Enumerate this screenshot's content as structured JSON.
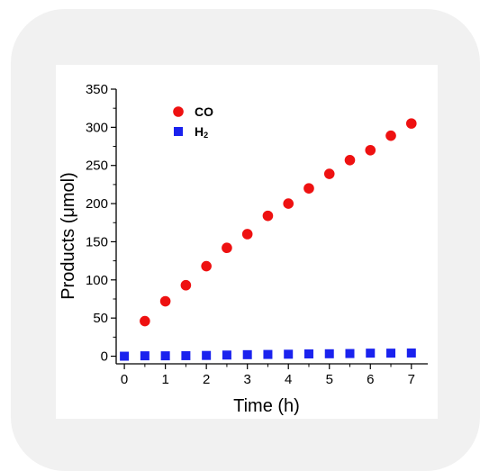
{
  "chart_data": {
    "type": "scatter",
    "xlabel": "Time (h)",
    "ylabel": "Products (μmol)",
    "xlim": [
      -0.2,
      7.4
    ],
    "ylim": [
      -10,
      350
    ],
    "xticks": [
      0,
      1,
      2,
      3,
      4,
      5,
      6,
      7
    ],
    "yticks": [
      0,
      50,
      100,
      150,
      200,
      250,
      300,
      350
    ],
    "xtick_labels": [
      "0",
      "1",
      "2",
      "3",
      "4",
      "5",
      "6",
      "7"
    ],
    "ytick_labels": [
      "0",
      "50",
      "100",
      "150",
      "200",
      "250",
      "300",
      "350"
    ],
    "grid": false,
    "legend_position": "top-left",
    "series": [
      {
        "name": "CO",
        "marker": "circle",
        "color": "#ee1111",
        "x": [
          0.5,
          1.0,
          1.5,
          2.0,
          2.5,
          3.0,
          3.5,
          4.0,
          4.5,
          5.0,
          5.5,
          6.0,
          6.5,
          7.0
        ],
        "y": [
          46,
          72,
          93,
          118,
          142,
          160,
          184,
          200,
          220,
          239,
          257,
          270,
          289,
          305
        ]
      },
      {
        "name": "H",
        "name_subscript": "2",
        "marker": "square",
        "color": "#1a22ee",
        "x": [
          0,
          0.5,
          1.0,
          1.5,
          2.0,
          2.5,
          3.0,
          3.5,
          4.0,
          4.5,
          5.0,
          5.5,
          6.0,
          6.5,
          7.0
        ],
        "y": [
          0,
          0.5,
          0.5,
          0.7,
          1,
          1.5,
          2,
          2.3,
          2.6,
          3,
          3.2,
          3.5,
          4,
          4,
          4.2
        ]
      }
    ]
  }
}
